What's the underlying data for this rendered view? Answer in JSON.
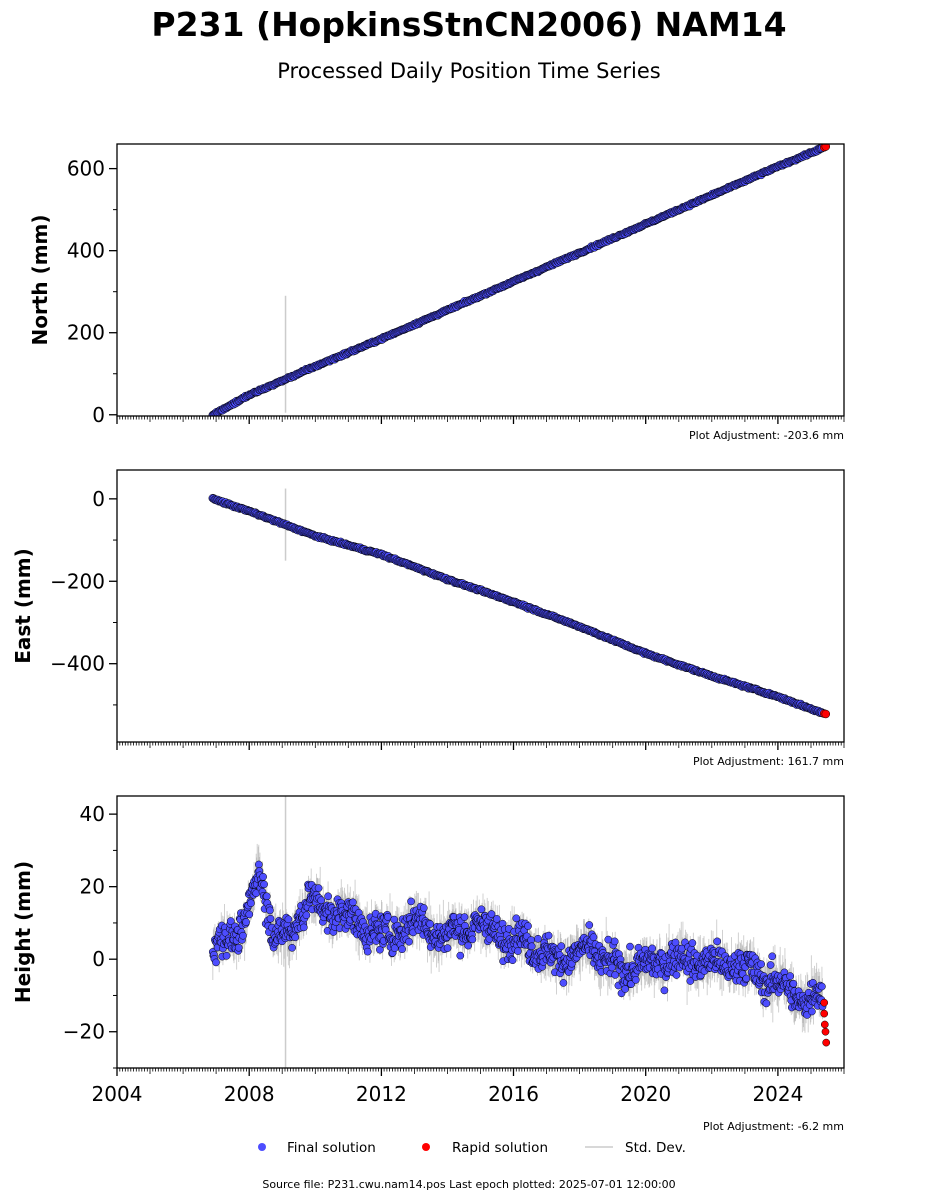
{
  "title": "P231 (HopkinsStnCN2006) NAM14",
  "subtitle": "Processed Daily Position Time Series",
  "source_note": "Source file: P231.cwu.nam14.pos  Last epoch plotted: 2025-07-01 12:00:00",
  "legend": [
    {
      "label": "Final solution",
      "color": "#4d4dff",
      "marker": "circle"
    },
    {
      "label": "Rapid solution",
      "color": "#ff0000",
      "marker": "circle"
    },
    {
      "label": "Std. Dev.",
      "color": "#cccccc",
      "marker": "line"
    }
  ],
  "colors": {
    "final": "#4d4dff",
    "rapid": "#ff0000",
    "stddev": "#999999",
    "edge": "#000000"
  },
  "chart_data": [
    {
      "type": "scatter",
      "ylabel": "North (mm)",
      "adjustment_text": "Plot Adjustment: -203.6 mm",
      "xlim": [
        2004,
        2026
      ],
      "ylim": [
        -3,
        660
      ],
      "yticks": [
        0,
        200,
        400,
        600
      ],
      "ytick_labels": [
        "0",
        "200",
        "400",
        "600"
      ],
      "show_xtick_labels": false,
      "grid": false,
      "series": [
        {
          "name": "Final solution",
          "x": [
            2006.9,
            2008.0,
            2010.0,
            2012.0,
            2014.0,
            2016.0,
            2018.0,
            2020.0,
            2022.0,
            2024.0,
            2025.35
          ],
          "values": [
            0,
            48,
            118,
            185,
            255,
            325,
            395,
            465,
            535,
            605,
            650
          ]
        },
        {
          "name": "Rapid solution",
          "x": [
            2025.4,
            2025.45
          ],
          "values": [
            652,
            654
          ]
        }
      ],
      "outlier": {
        "x": 2009.1,
        "low": 5,
        "high": 290
      }
    },
    {
      "type": "scatter",
      "ylabel": "East (mm)",
      "adjustment_text": "Plot Adjustment: 161.7 mm",
      "xlim": [
        2004,
        2026
      ],
      "ylim": [
        -590,
        70
      ],
      "yticks": [
        0,
        -200,
        -400
      ],
      "ytick_labels": [
        "0",
        "−200",
        "−400"
      ],
      "show_xtick_labels": false,
      "grid": false,
      "series": [
        {
          "name": "Final solution",
          "x": [
            2006.9,
            2008.0,
            2010.0,
            2012.0,
            2014.0,
            2016.0,
            2018.0,
            2020.0,
            2022.0,
            2024.0,
            2025.35
          ],
          "values": [
            0,
            -30,
            -90,
            -135,
            -195,
            -250,
            -310,
            -375,
            -430,
            -480,
            -520
          ]
        },
        {
          "name": "Rapid solution",
          "x": [
            2025.4,
            2025.45
          ],
          "values": [
            -521,
            -522
          ]
        }
      ],
      "outlier": {
        "x": 2009.1,
        "low": -150,
        "high": 25
      }
    },
    {
      "type": "scatter",
      "ylabel": "Height (mm)",
      "adjustment_text": "Plot Adjustment: -6.2 mm",
      "xlim": [
        2004,
        2026
      ],
      "ylim": [
        -30,
        45
      ],
      "yticks": [
        40,
        20,
        0,
        -20
      ],
      "ytick_labels": [
        "40",
        "20",
        "0",
        "−20"
      ],
      "show_xtick_labels": true,
      "xticks": [
        2004,
        2008,
        2012,
        2016,
        2020,
        2024
      ],
      "xtick_labels": [
        "2004",
        "2008",
        "2012",
        "2016",
        "2020",
        "2024"
      ],
      "grid": false,
      "series": [
        {
          "name": "Final solution",
          "x": [
            2006.9,
            2007.3,
            2007.8,
            2008.3,
            2008.8,
            2009.3,
            2009.8,
            2010.3,
            2010.8,
            2011.3,
            2011.8,
            2012.3,
            2012.8,
            2013.3,
            2013.8,
            2014.3,
            2014.8,
            2015.3,
            2015.8,
            2016.3,
            2016.8,
            2017.3,
            2017.8,
            2018.3,
            2018.8,
            2019.3,
            2019.8,
            2020.3,
            2020.8,
            2021.3,
            2021.8,
            2022.3,
            2022.8,
            2023.3,
            2023.8,
            2024.3,
            2024.8,
            2025.35
          ],
          "values": [
            5,
            2,
            12,
            20,
            10,
            3,
            22,
            8,
            18,
            5,
            12,
            2,
            14,
            6,
            10,
            4,
            13,
            5,
            9,
            2,
            6,
            -4,
            5,
            -1,
            4,
            -8,
            3,
            -6,
            5,
            -5,
            4,
            -6,
            3,
            -8,
            -2,
            -12,
            -8,
            -14
          ]
        },
        {
          "name": "Rapid solution",
          "x": [
            2025.4,
            2025.4,
            2025.42,
            2025.44,
            2025.46
          ],
          "values": [
            -12,
            -15,
            -18,
            -20,
            -23
          ]
        }
      ],
      "outlier": {
        "x": 2009.1,
        "low": -30,
        "high": 45
      }
    }
  ]
}
